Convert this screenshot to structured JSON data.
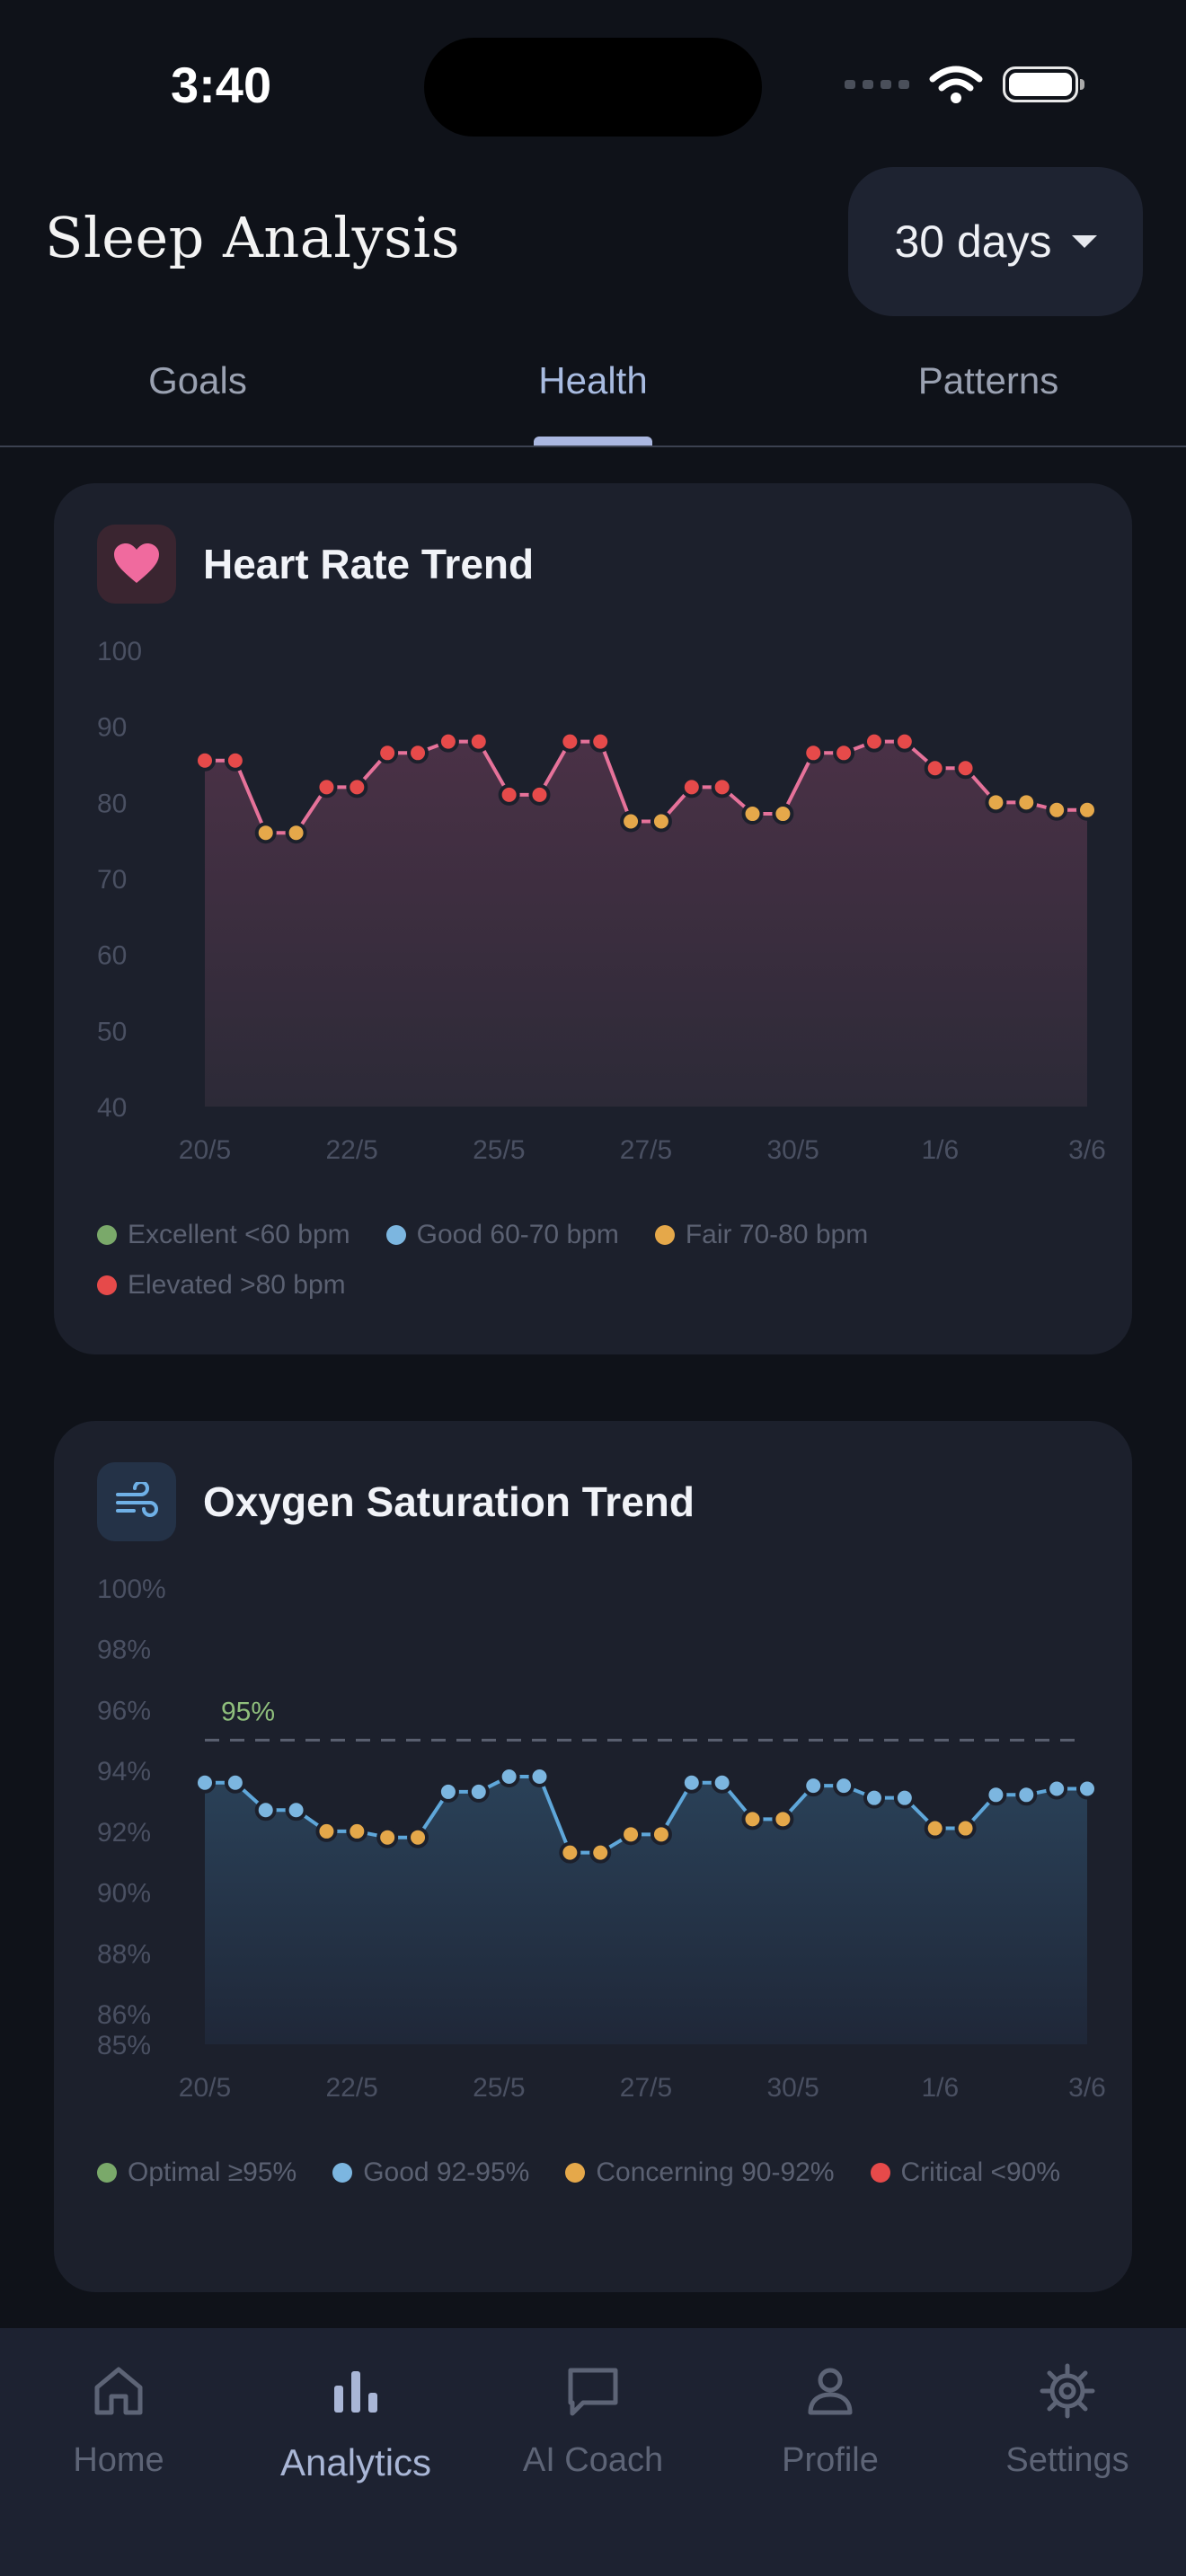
{
  "status": {
    "time": "3:40"
  },
  "header": {
    "title": "Sleep Analysis",
    "range": "30 days"
  },
  "tabs": [
    {
      "label": "Goals"
    },
    {
      "label": "Health"
    },
    {
      "label": "Patterns"
    }
  ],
  "active_tab": "Health",
  "colors": {
    "excellent": "#7aa96a",
    "good": "#7cb6e0",
    "fair": "#e5a84a",
    "elevated": "#e64a4a",
    "hr_line": "#e6729a",
    "spo2_line": "#5fa7da"
  },
  "chart_data": [
    {
      "type": "line",
      "title": "Heart Rate Trend",
      "icon": "heart-icon",
      "x_tick_labels": [
        "20/5",
        "22/5",
        "25/5",
        "27/5",
        "30/5",
        "1/6",
        "3/6"
      ],
      "y_tick_labels": [
        "100",
        "90",
        "80",
        "70",
        "60",
        "50",
        "40"
      ],
      "ylim": [
        40,
        100
      ],
      "grid": false,
      "series": [
        {
          "values": [
            85.5,
            85.5,
            76,
            76,
            82,
            82,
            86.5,
            86.5,
            88,
            88,
            81,
            81,
            88,
            88,
            77.5,
            77.5,
            82,
            82,
            78.5,
            78.5,
            86.5,
            86.5,
            88,
            88,
            84.5,
            84.5,
            80,
            80,
            79,
            79
          ]
        }
      ],
      "legend": [
        {
          "label": "Excellent <60 bpm",
          "color": "#7aa96a"
        },
        {
          "label": "Good 60-70 bpm",
          "color": "#7cb6e0"
        },
        {
          "label": "Fair 70-80 bpm",
          "color": "#e5a84a"
        },
        {
          "label": "Elevated >80 bpm",
          "color": "#e64a4a"
        }
      ]
    },
    {
      "type": "line",
      "title": "Oxygen Saturation Trend",
      "icon": "wind-icon",
      "x_tick_labels": [
        "20/5",
        "22/5",
        "25/5",
        "27/5",
        "30/5",
        "1/6",
        "3/6"
      ],
      "y_tick_labels": [
        "100%",
        "98%",
        "96%",
        "94%",
        "92%",
        "90%",
        "88%",
        "86%",
        "85%"
      ],
      "y_tick_values": [
        100,
        98,
        96,
        94,
        92,
        90,
        88,
        86,
        85
      ],
      "ylim": [
        85,
        100
      ],
      "reference_line": {
        "value": 95,
        "label": "95%"
      },
      "grid": false,
      "series": [
        {
          "values": [
            93.6,
            93.6,
            92.7,
            92.7,
            92,
            92,
            91.8,
            91.8,
            93.3,
            93.3,
            93.8,
            93.8,
            91.3,
            91.3,
            91.9,
            91.9,
            93.6,
            93.6,
            92.4,
            92.4,
            93.5,
            93.5,
            93.1,
            93.1,
            92.1,
            92.1,
            93.2,
            93.2,
            93.4,
            93.4
          ]
        }
      ],
      "legend": [
        {
          "label": "Optimal ≥95%",
          "color": "#7aa96a"
        },
        {
          "label": "Good 92-95%",
          "color": "#7cb6e0"
        },
        {
          "label": "Concerning 90-92%",
          "color": "#e5a84a"
        },
        {
          "label": "Critical <90%",
          "color": "#e64a4a"
        }
      ]
    }
  ],
  "nav": [
    {
      "label": "Home",
      "icon": "home-icon"
    },
    {
      "label": "Analytics",
      "icon": "bar-chart-icon"
    },
    {
      "label": "AI Coach",
      "icon": "chat-icon"
    },
    {
      "label": "Profile",
      "icon": "person-icon"
    },
    {
      "label": "Settings",
      "icon": "gear-icon"
    }
  ],
  "active_nav": "Analytics"
}
